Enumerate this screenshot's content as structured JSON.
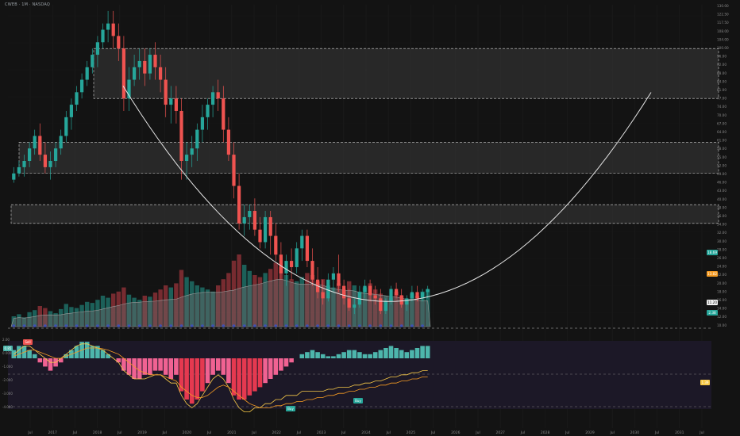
{
  "header": {
    "symbol_line": "CWEB · 1M · NASDAQ"
  },
  "colors": {
    "bg": "#131313",
    "up": "#26a69a",
    "down": "#ef5350",
    "zone": "#3a3a3a",
    "macd_pos": "#4db6ac",
    "macd_neg": "#f06292",
    "macd_line": "#f7c948",
    "signal_line": "#f59b23",
    "cup": "#e6e6e6",
    "osc_bg": "#1c1827"
  },
  "chart_data": {
    "type": "candlestick",
    "title": "",
    "time_axis": {
      "range": [
        "2016-07",
        "2031-12"
      ],
      "labels": [
        "Jul",
        "2017",
        "Jul",
        "2018",
        "Jul",
        "2019",
        "Jul",
        "2020",
        "Jul",
        "2021",
        "Jul",
        "2022",
        "Jul",
        "2023",
        "Jul",
        "2024",
        "Jul",
        "2025",
        "Jul",
        "2026",
        "Jul",
        "2027",
        "Jul",
        "2028",
        "Jul",
        "2029",
        "Jul",
        "2030",
        "Jul",
        "2031",
        "Jul"
      ]
    },
    "price_axis": {
      "labels": [
        "130.00",
        "122.50",
        "117.50",
        "108.00",
        "104.00",
        "100.00",
        "96.00",
        "92.00",
        "88.00",
        "84.00",
        "81.00",
        "77.00",
        "74.00",
        "70.00",
        "67.00",
        "64.00",
        "61.00",
        "58.00",
        "55.00",
        "52.00",
        "49.00",
        "46.00",
        "43.00",
        "40.00",
        "38.00",
        "36.00",
        "34.00",
        "32.00",
        "30.00",
        "28.00",
        "26.00",
        "24.00",
        "22.00",
        "20.00",
        "18.00",
        "16.00",
        "14.00",
        "12.00",
        "10.00"
      ]
    },
    "price_badges": [
      {
        "label": "18.69",
        "color": "#26a69a"
      },
      {
        "label": "13.82",
        "color": "#f59b23"
      },
      {
        "label": "11.20",
        "color": "#eeeeee"
      },
      {
        "label": "2.38",
        "color": "#26a69a"
      }
    ],
    "ohlc": [
      [
        54,
        58,
        53,
        56
      ],
      [
        56,
        60,
        55,
        58
      ],
      [
        58,
        62,
        55,
        60
      ],
      [
        60,
        66,
        58,
        64
      ],
      [
        64,
        70,
        62,
        68
      ],
      [
        68,
        72,
        60,
        62
      ],
      [
        62,
        66,
        56,
        58
      ],
      [
        58,
        63,
        54,
        60
      ],
      [
        60,
        66,
        58,
        64
      ],
      [
        64,
        70,
        62,
        68
      ],
      [
        68,
        76,
        66,
        74
      ],
      [
        74,
        80,
        70,
        78
      ],
      [
        78,
        84,
        76,
        82
      ],
      [
        82,
        88,
        80,
        86
      ],
      [
        86,
        92,
        84,
        90
      ],
      [
        90,
        96,
        88,
        94
      ],
      [
        94,
        100,
        90,
        98
      ],
      [
        98,
        104,
        96,
        102
      ],
      [
        102,
        108,
        98,
        104
      ],
      [
        104,
        108,
        96,
        100
      ],
      [
        100,
        104,
        92,
        96
      ],
      [
        96,
        100,
        76,
        80
      ],
      [
        80,
        90,
        76,
        86
      ],
      [
        86,
        94,
        84,
        90
      ],
      [
        90,
        96,
        86,
        92
      ],
      [
        92,
        96,
        84,
        88
      ],
      [
        88,
        96,
        86,
        94
      ],
      [
        94,
        98,
        86,
        90
      ],
      [
        90,
        94,
        82,
        86
      ],
      [
        86,
        90,
        74,
        78
      ],
      [
        78,
        84,
        72,
        80
      ],
      [
        80,
        84,
        72,
        76
      ],
      [
        76,
        80,
        54,
        60
      ],
      [
        60,
        66,
        54,
        62
      ],
      [
        62,
        68,
        58,
        64
      ],
      [
        64,
        72,
        60,
        70
      ],
      [
        70,
        78,
        66,
        74
      ],
      [
        74,
        80,
        70,
        78
      ],
      [
        78,
        84,
        74,
        82
      ],
      [
        82,
        86,
        76,
        80
      ],
      [
        80,
        84,
        66,
        70
      ],
      [
        70,
        74,
        60,
        62
      ],
      [
        62,
        66,
        48,
        52
      ],
      [
        52,
        56,
        38,
        40
      ],
      [
        40,
        46,
        36,
        42
      ],
      [
        42,
        46,
        38,
        44
      ],
      [
        44,
        48,
        36,
        38
      ],
      [
        38,
        42,
        32,
        34
      ],
      [
        34,
        44,
        32,
        42
      ],
      [
        42,
        44,
        30,
        36
      ],
      [
        36,
        40,
        28,
        30
      ],
      [
        30,
        34,
        22,
        24
      ],
      [
        24,
        30,
        20,
        28
      ],
      [
        28,
        32,
        22,
        26
      ],
      [
        26,
        34,
        24,
        32
      ],
      [
        32,
        38,
        28,
        36
      ],
      [
        36,
        38,
        26,
        28
      ],
      [
        28,
        32,
        20,
        22
      ],
      [
        22,
        26,
        16,
        18
      ],
      [
        18,
        22,
        14,
        16
      ],
      [
        16,
        24,
        15,
        22
      ],
      [
        22,
        26,
        18,
        24
      ],
      [
        24,
        30,
        18,
        20
      ],
      [
        20,
        22,
        14,
        16
      ],
      [
        16,
        19,
        12,
        13
      ],
      [
        13,
        16,
        11,
        14
      ],
      [
        14,
        20,
        13,
        18
      ],
      [
        18,
        22,
        16,
        20
      ],
      [
        20,
        22,
        15,
        17
      ],
      [
        17,
        20,
        14,
        16
      ],
      [
        16,
        19,
        11,
        12
      ],
      [
        12,
        16,
        11,
        15
      ],
      [
        15,
        20,
        14,
        19
      ],
      [
        19,
        21,
        16,
        17
      ],
      [
        17,
        19,
        13,
        14
      ],
      [
        14,
        17,
        12,
        16
      ],
      [
        16,
        20,
        15,
        18
      ],
      [
        18,
        20,
        15,
        16
      ],
      [
        16,
        19,
        15,
        18
      ],
      [
        18,
        20,
        16,
        19
      ]
    ],
    "zones": [
      {
        "low": 80,
        "high": 96
      },
      {
        "low": 56,
        "high": 66
      },
      {
        "low": 40,
        "high": 46
      }
    ],
    "volume": [
      10,
      12,
      9,
      14,
      16,
      20,
      18,
      15,
      13,
      17,
      22,
      19,
      18,
      21,
      24,
      23,
      26,
      30,
      28,
      32,
      34,
      38,
      31,
      28,
      26,
      30,
      29,
      33,
      36,
      40,
      38,
      42,
      55,
      48,
      44,
      40,
      38,
      36,
      34,
      40,
      46,
      52,
      64,
      70,
      60,
      54,
      50,
      48,
      52,
      56,
      62,
      58,
      50,
      46,
      44,
      48,
      52,
      50,
      44,
      46,
      40,
      38,
      42,
      36,
      44,
      40,
      34,
      38,
      42,
      36,
      32,
      30,
      28,
      34,
      30,
      26,
      32,
      30,
      34,
      36
    ],
    "macd_hist": [
      2,
      3,
      3,
      2,
      1,
      -1,
      -2,
      -3,
      -2,
      -1,
      1,
      2,
      3,
      4,
      4,
      3,
      3,
      2,
      1,
      0,
      -1,
      -3,
      -4,
      -5,
      -5,
      -4,
      -4,
      -3,
      -3,
      -4,
      -5,
      -4,
      -8,
      -10,
      -11,
      -10,
      -8,
      -6,
      -4,
      -3,
      -4,
      -6,
      -9,
      -10,
      -10,
      -9,
      -8,
      -7,
      -6,
      -5,
      -4,
      -3,
      -2,
      -1,
      0,
      1,
      1.5,
      2,
      1.5,
      1,
      0.5,
      0.5,
      1,
      1.5,
      2,
      2,
      1.5,
      1,
      1,
      1.5,
      2,
      2.5,
      3,
      2.5,
      2,
      1.5,
      2,
      2.5,
      3,
      3
    ],
    "macd_line": [
      1,
      2,
      3,
      3,
      2,
      1,
      0,
      -1,
      -1,
      0,
      1,
      2,
      3,
      3.5,
      3.5,
      3,
      2.5,
      2,
      1,
      0,
      -1,
      -3,
      -4,
      -5,
      -5,
      -5,
      -4.5,
      -4,
      -4,
      -5,
      -6,
      -6,
      -9,
      -11,
      -12,
      -11,
      -9,
      -7,
      -5,
      -4,
      -5,
      -7,
      -10,
      -12,
      -13,
      -13,
      -12,
      -12,
      -11,
      -11,
      -10,
      -10,
      -9,
      -9,
      -9,
      -8,
      -8,
      -8,
      -8,
      -8,
      -7.5,
      -7.5,
      -7,
      -7,
      -7,
      -6.5,
      -6.5,
      -6,
      -6,
      -5.5,
      -5.5,
      -5,
      -4.5,
      -4.5,
      -4,
      -4,
      -3.5,
      -3.5,
      -3,
      -3
    ],
    "signal_line": [
      0.5,
      1,
      1.5,
      2,
      2,
      1.5,
      1,
      0.5,
      0,
      0,
      0.5,
      1,
      1.5,
      2,
      2.5,
      2.5,
      2.5,
      2.3,
      2,
      1.5,
      1,
      0,
      -1,
      -2,
      -3,
      -3.5,
      -4,
      -4,
      -4,
      -4.5,
      -5,
      -5.5,
      -7,
      -8,
      -9,
      -9.5,
      -9.5,
      -9,
      -8,
      -7,
      -6.5,
      -7,
      -8,
      -9,
      -10,
      -11,
      -11.5,
      -12,
      -12,
      -12,
      -11.5,
      -11.5,
      -11,
      -11,
      -10.5,
      -10.5,
      -10,
      -10,
      -9.5,
      -9.5,
      -9,
      -9,
      -8.5,
      -8.5,
      -8,
      -8,
      -7.5,
      -7.5,
      -7,
      -7,
      -6.5,
      -6.5,
      -6,
      -6,
      -5.5,
      -5.5,
      -5,
      -5,
      -4.5,
      -4.5
    ],
    "osc_axis": {
      "labels": [
        "2.00",
        "0.000",
        "-1.000",
        "-2.000",
        "-3.000",
        "-4.000"
      ]
    },
    "osc_badges": [
      {
        "label": "Sell",
        "color": "#ef5350"
      },
      {
        "label": "Buy",
        "color": "#26a69a"
      },
      {
        "label": "Buy",
        "color": "#26a69a"
      },
      {
        "label": "0.85",
        "color": "#4db6ac"
      },
      {
        "label": "1.39",
        "color": "#f7c948"
      }
    ],
    "annotation": "cup curve projecting from 2019 high to 2030 zone"
  }
}
